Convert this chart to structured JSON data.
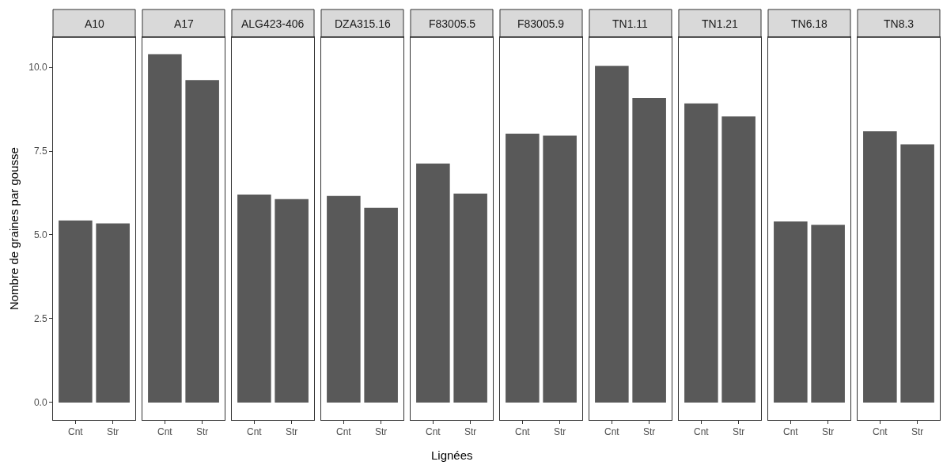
{
  "chart_data": [
    {
      "type": "bar",
      "title": "A10",
      "categories": [
        "Cnt",
        "Str"
      ],
      "values": [
        5.43,
        5.34
      ],
      "color": "#595959",
      "ylim": [
        -0.52,
        10.89
      ],
      "yticks": [
        {
          "value": 0,
          "label": "0.0"
        },
        {
          "value": 2.5,
          "label": "2.5"
        },
        {
          "value": 5,
          "label": "5.0"
        },
        {
          "value": 7.5,
          "label": "7.5"
        },
        {
          "value": 10,
          "label": "10.0"
        }
      ],
      "ylabel": "Nombre de graines par gousse"
    },
    {
      "type": "bar",
      "title": "A17",
      "categories": [
        "Cnt",
        "Str"
      ],
      "values": [
        10.39,
        9.62
      ],
      "color": "#595959",
      "ylim": [
        -0.52,
        10.89
      ],
      "tick_labels": "x"
    },
    {
      "type": "bar",
      "title": "ALG423-406",
      "categories": [
        "Cnt",
        "Str"
      ],
      "values": [
        6.2,
        6.07
      ],
      "color": "#595959",
      "ylim": [
        -0.52,
        10.89
      ],
      "tick_labels": "x"
    },
    {
      "type": "bar",
      "title": "DZA315.16",
      "categories": [
        "Cnt",
        "Str"
      ],
      "values": [
        6.16,
        5.81
      ],
      "color": "#595959",
      "ylim": [
        -0.52,
        10.89
      ],
      "tick_labels": "x"
    },
    {
      "type": "bar",
      "title": "F83005.5",
      "categories": [
        "Cnt",
        "Str"
      ],
      "values": [
        7.13,
        6.23
      ],
      "color": "#595959",
      "ylim": [
        -0.52,
        10.89
      ],
      "tick_labels": "x",
      "xlabel": "Lignées"
    },
    {
      "type": "bar",
      "title": "F83005.9",
      "categories": [
        "Cnt",
        "Str"
      ],
      "values": [
        8.02,
        7.96
      ],
      "color": "#595959",
      "ylim": [
        -0.52,
        10.89
      ],
      "tick_labels": "x"
    },
    {
      "type": "bar",
      "title": "TN1.11",
      "categories": [
        "Cnt",
        "Str"
      ],
      "values": [
        10.04,
        9.08
      ],
      "color": "#595959",
      "ylim": [
        -0.52,
        10.89
      ],
      "tick_labels": "x"
    },
    {
      "type": "bar",
      "title": "TN1.21",
      "categories": [
        "Cnt",
        "Str"
      ],
      "values": [
        8.92,
        8.53
      ],
      "color": "#595959",
      "ylim": [
        -0.52,
        10.89
      ],
      "tick_labels": "x"
    },
    {
      "type": "bar",
      "title": "TN6.18",
      "categories": [
        "Cnt",
        "Str"
      ],
      "values": [
        5.4,
        5.3
      ],
      "color": "#595959",
      "ylim": [
        -0.52,
        10.89
      ],
      "tick_labels": "x"
    },
    {
      "type": "bar",
      "title": "TN8.3",
      "categories": [
        "Cnt",
        "Str"
      ],
      "values": [
        8.09,
        7.7
      ],
      "color": "#595959",
      "ylim": [
        -0.52,
        10.89
      ],
      "tick_labels": "x"
    }
  ]
}
